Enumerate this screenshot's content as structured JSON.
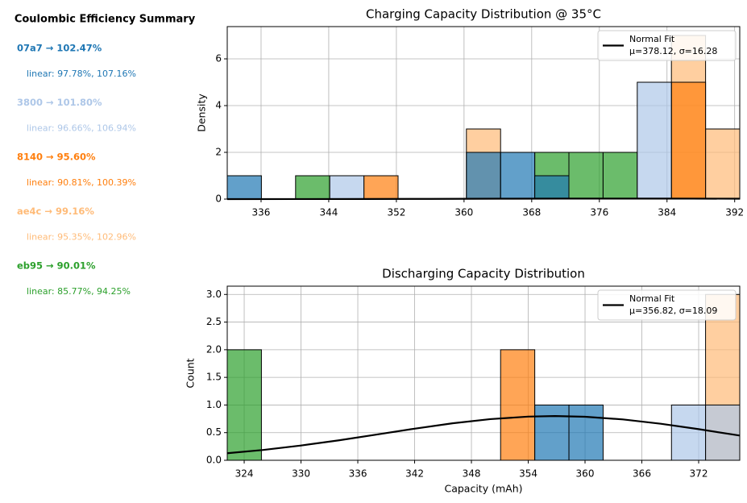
{
  "summary": {
    "title": "Coulombic Efficiency Summary",
    "items": [
      {
        "headline": "07a7 → 102.47%",
        "detail": "linear: 97.78%, 107.16%",
        "color": "#1f77b4"
      },
      {
        "headline": "3800 → 101.80%",
        "detail": "linear: 96.66%, 106.94%",
        "color": "#aec7e8"
      },
      {
        "headline": "8140 → 95.60%",
        "detail": "linear: 90.81%, 100.39%",
        "color": "#ff7f0e"
      },
      {
        "headline": "ae4c → 99.16%",
        "detail": "linear: 95.35%, 102.96%",
        "color": "#ffbb78"
      },
      {
        "headline": "eb95 → 90.01%",
        "detail": "linear: 85.77%, 94.25%",
        "color": "#2ca02c"
      }
    ]
  },
  "chart_data": [
    {
      "type": "histogram",
      "title": "Charging Capacity Distribution @ 35°C",
      "ylabel": "Density",
      "bins": [
        332,
        336.04,
        340.08,
        344.12,
        348.16,
        352.2,
        356.24,
        360.28,
        364.32,
        368.36,
        372.4,
        376.44,
        380.48,
        384.52,
        388.56,
        392.6
      ],
      "series": [
        {
          "color": "#1f77b4",
          "values": [
            1,
            0,
            0,
            0,
            0,
            0,
            0,
            2,
            2,
            1,
            0,
            0,
            0,
            0,
            0
          ]
        },
        {
          "color": "#aec7e8",
          "values": [
            0,
            0,
            0,
            1,
            0,
            0,
            0,
            0,
            0,
            0,
            0,
            0,
            5,
            0,
            0
          ]
        },
        {
          "color": "#ff7f0e",
          "values": [
            0,
            0,
            0,
            0,
            1,
            0,
            0,
            0,
            0,
            0,
            0,
            0,
            0,
            5,
            0
          ]
        },
        {
          "color": "#ffbb78",
          "values": [
            0,
            0,
            0,
            0,
            0,
            0,
            0,
            3,
            0,
            0,
            0,
            0,
            0,
            7,
            3
          ]
        },
        {
          "color": "#2ca02c",
          "values": [
            0,
            0,
            1,
            0,
            0,
            0,
            0,
            0,
            0,
            2,
            2,
            2,
            0,
            0,
            0
          ]
        }
      ],
      "fit": {
        "name": "Normal Fit",
        "label": "μ=378.12, σ=16.28",
        "color": "#000000",
        "x": [
          332,
          340,
          348,
          356,
          364,
          372,
          378.12,
          384,
          392.6
        ],
        "values": [
          0.00044,
          0.00158,
          0.00443,
          0.00974,
          0.0168,
          0.0228,
          0.0245,
          0.023,
          0.0165
        ]
      },
      "xlim": [
        332,
        392.6
      ],
      "xticks": [
        336,
        344,
        352,
        360,
        368,
        376,
        384,
        392
      ],
      "ylim": [
        0,
        7.38
      ],
      "yticks": [
        0,
        2,
        4,
        6
      ],
      "grid": true,
      "legend": "upper right",
      "alpha": 0.7
    },
    {
      "type": "histogram",
      "title": "Discharging Capacity Distribution",
      "ylabel": "Count",
      "xlabel": "Capacity (mAh)",
      "bins": [
        322.21,
        325.82,
        329.43,
        333.04,
        336.65,
        340.26,
        343.86,
        347.47,
        351.08,
        354.69,
        358.3,
        361.91,
        365.52,
        369.13,
        372.73,
        376.34
      ],
      "series": [
        {
          "color": "#1f77b4",
          "values": [
            0,
            0,
            0,
            0,
            0,
            0,
            0,
            0,
            0,
            1,
            1,
            0,
            0,
            0,
            0
          ]
        },
        {
          "color": "#aec7e8",
          "values": [
            0,
            0,
            0,
            0,
            0,
            0,
            0,
            0,
            0,
            0,
            0,
            0,
            0,
            1,
            1
          ]
        },
        {
          "color": "#ff7f0e",
          "values": [
            0,
            0,
            0,
            0,
            0,
            0,
            0,
            0,
            2,
            0,
            0,
            0,
            0,
            0,
            0
          ]
        },
        {
          "color": "#ffbb78",
          "values": [
            0,
            0,
            0,
            0,
            0,
            0,
            0,
            0,
            0,
            0,
            0,
            0,
            0,
            0,
            3
          ]
        },
        {
          "color": "#2ca02c",
          "values": [
            2,
            0,
            0,
            0,
            0,
            0,
            0,
            0,
            0,
            0,
            0,
            0,
            0,
            0,
            0
          ]
        }
      ],
      "fit": {
        "name": "Normal Fit",
        "label": "μ=356.82, σ=18.09",
        "color": "#000000",
        "x": [
          322.21,
          326,
          330,
          334,
          338,
          342,
          346,
          350,
          354,
          356.82,
          360,
          364,
          368,
          372,
          376.34
        ],
        "values": [
          0.128,
          0.187,
          0.267,
          0.361,
          0.466,
          0.572,
          0.669,
          0.745,
          0.79,
          0.8,
          0.788,
          0.739,
          0.661,
          0.563,
          0.447
        ]
      },
      "xlim": [
        322.21,
        376.34
      ],
      "xticks": [
        324,
        330,
        336,
        342,
        348,
        354,
        360,
        366,
        372
      ],
      "ylim": [
        0,
        3.15
      ],
      "yticks": [
        {
          "value": 0,
          "label": "0.0"
        },
        0.5,
        {
          "value": 1,
          "label": "1.0"
        },
        1.5,
        {
          "value": 2,
          "label": "2.0"
        },
        2.5,
        {
          "value": 3,
          "label": "3.0"
        }
      ],
      "grid": true,
      "legend": "upper right",
      "alpha": 0.7
    }
  ]
}
